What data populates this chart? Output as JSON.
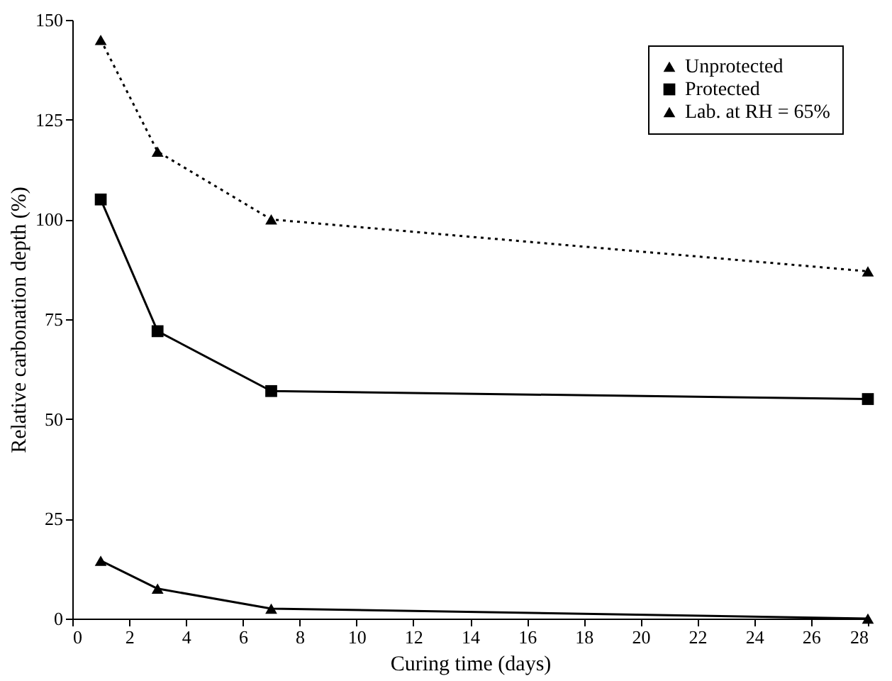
{
  "chart_data": {
    "type": "line",
    "xlabel": "Curing time (days)",
    "ylabel": "Relative carbonation depth (%)",
    "x": [
      1,
      3,
      7,
      28
    ],
    "series": [
      {
        "name": "Unprotected",
        "color": "#000000",
        "marker": "triangle",
        "line_style": "solid",
        "values": [
          14.5,
          7.5,
          2.5,
          0
        ]
      },
      {
        "name": "Protected",
        "color": "#000000",
        "marker": "square",
        "line_style": "solid",
        "values": [
          105,
          72,
          57,
          55
        ]
      },
      {
        "name": "Lab. at RH = 65%",
        "color": "#000000",
        "marker": "triangle",
        "line_style": "dotted",
        "values": [
          145,
          117,
          100,
          87
        ]
      }
    ],
    "xlim": [
      0,
      28
    ],
    "xticks": [
      0,
      2,
      4,
      6,
      8,
      10,
      12,
      14,
      16,
      18,
      20,
      22,
      24,
      26,
      28
    ],
    "ylim": [
      0,
      150
    ],
    "yticks": [
      0,
      25,
      50,
      75,
      100,
      125,
      150
    ],
    "grid": false,
    "legend": "top right"
  }
}
